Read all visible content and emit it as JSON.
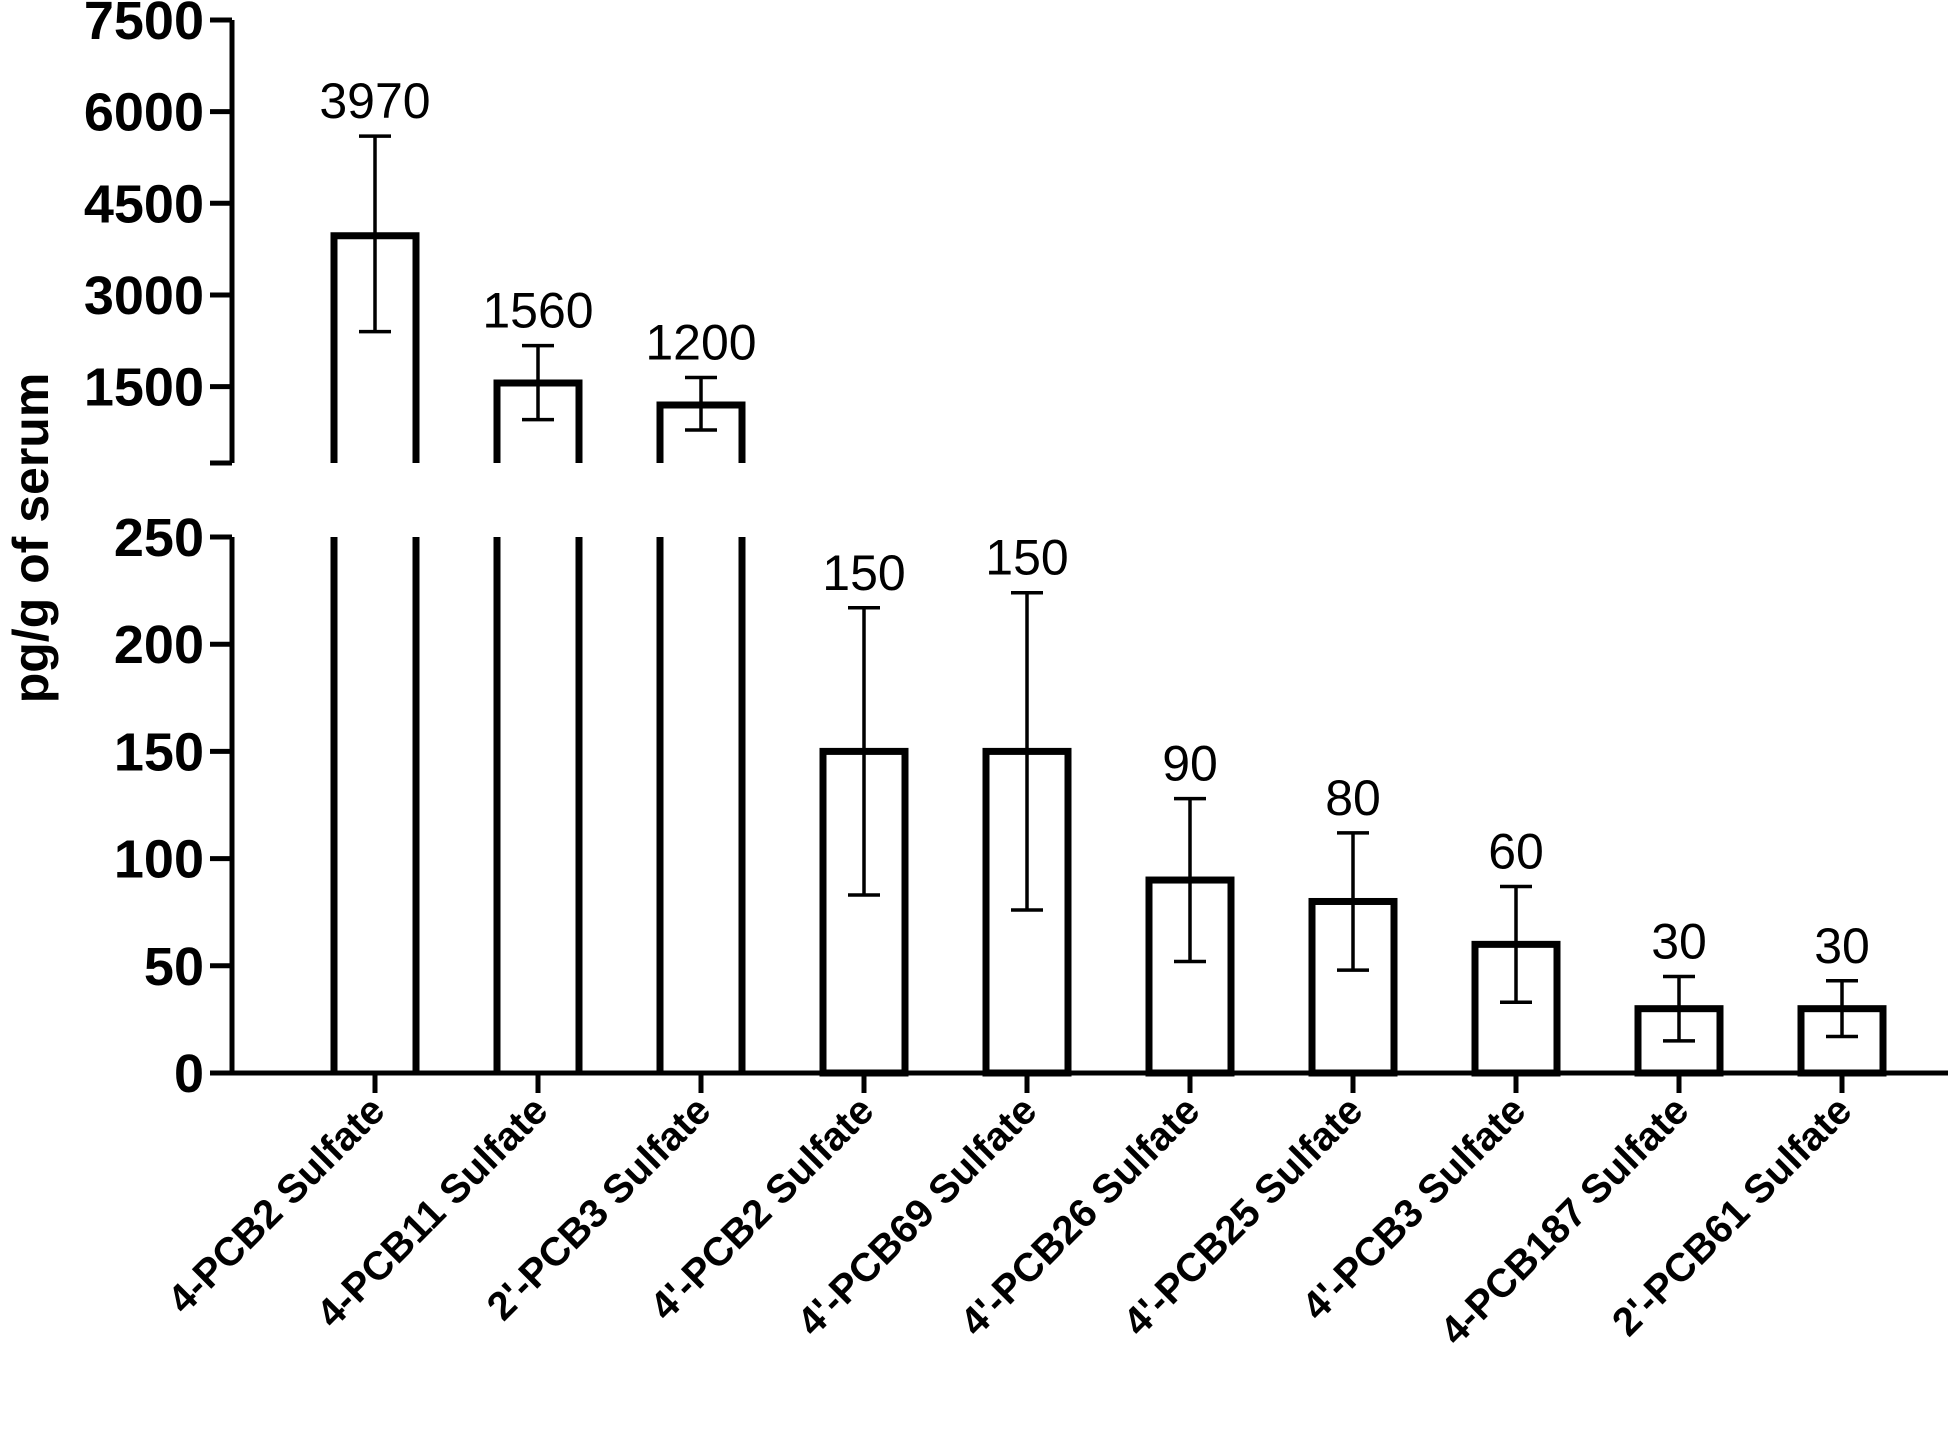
{
  "chart_data": {
    "type": "bar",
    "ylabel": "pg/g of serum",
    "xlabel": "",
    "title": "",
    "categories": [
      "4-PCB2 Sulfate",
      "4-PCB11 Sulfate",
      "2'-PCB3 Sulfate",
      "4'-PCB2 Sulfate",
      "4'-PCB69 Sulfate",
      "4'-PCB26 Sulfate",
      "4'-PCB25 Sulfate",
      "4'-PCB3 Sulfate",
      "4-PCB187 Sulfate",
      "2'-PCB61 Sulfate"
    ],
    "values": [
      3970,
      1560,
      1200,
      150,
      150,
      90,
      80,
      60,
      30,
      30
    ],
    "value_labels": [
      "3970",
      "1560",
      "1200",
      "150",
      "150",
      "90",
      "80",
      "60",
      "30",
      "30"
    ],
    "error_upper": [
      5600,
      2170,
      1650,
      217,
      224,
      128,
      112,
      87,
      45,
      43
    ],
    "error_lower": [
      2400,
      960,
      790,
      83,
      76,
      52,
      48,
      33,
      15,
      17
    ],
    "axis_broken": true,
    "lower_segment": {
      "ylim": [
        0,
        250
      ],
      "ticks": [
        0,
        50,
        100,
        150,
        200,
        250
      ],
      "tick_labels": [
        "0",
        "50",
        "100",
        "150",
        "200",
        "250"
      ]
    },
    "upper_segment": {
      "ylim": [
        250,
        7500
      ],
      "ticks": [
        1500,
        3000,
        4500,
        6000,
        7500
      ],
      "tick_labels": [
        "1500",
        "3000",
        "4500",
        "6000",
        "7500"
      ]
    },
    "grid": false,
    "legend": "none"
  }
}
